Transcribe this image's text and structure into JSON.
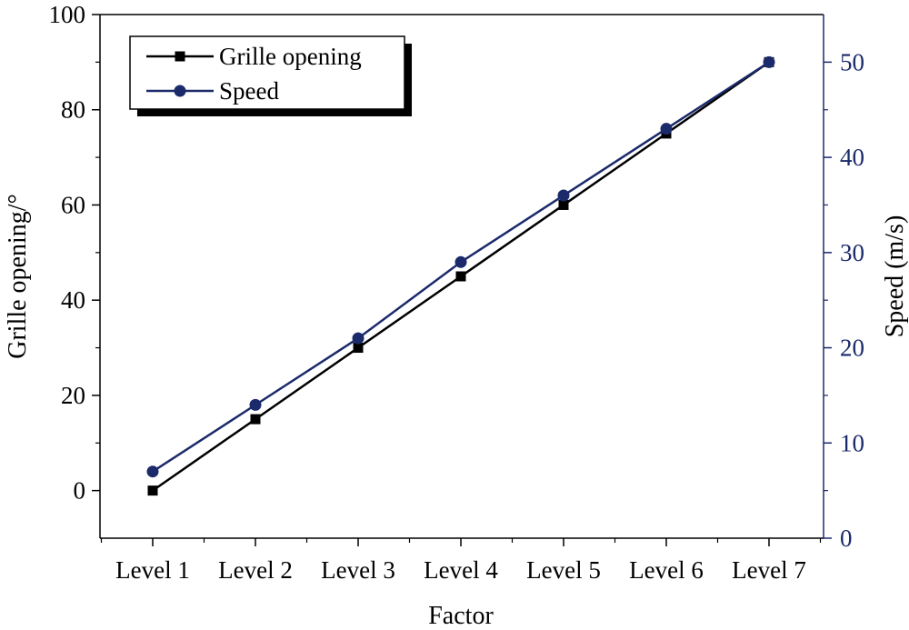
{
  "chart_data": {
    "type": "line",
    "title": "",
    "xlabel": "Factor",
    "ylabel": "Grille opening/°",
    "y2label": "Speed (m/s)",
    "categories": [
      "Level 1",
      "Level 2",
      "Level 3",
      "Level 4",
      "Level 5",
      "Level 6",
      "Level 7"
    ],
    "ylim": [
      -10,
      100
    ],
    "y_ticks": [
      0,
      20,
      40,
      60,
      80,
      100
    ],
    "y2lim": [
      0,
      55
    ],
    "y2_ticks": [
      0,
      10,
      20,
      30,
      40,
      50
    ],
    "grid": false,
    "legend_position": "top-left",
    "series": [
      {
        "name": "Grille opening",
        "axis": "left",
        "marker": "square",
        "color": "#000000",
        "values": [
          0,
          15,
          30,
          45,
          60,
          75,
          90
        ]
      },
      {
        "name": "Speed",
        "axis": "right",
        "marker": "circle",
        "color": "#1b2a6b",
        "values": [
          7,
          14,
          21,
          29,
          36,
          43,
          50
        ]
      }
    ],
    "colors": {
      "left_axis": "#000000",
      "right_axis": "#1b2a6b"
    }
  }
}
